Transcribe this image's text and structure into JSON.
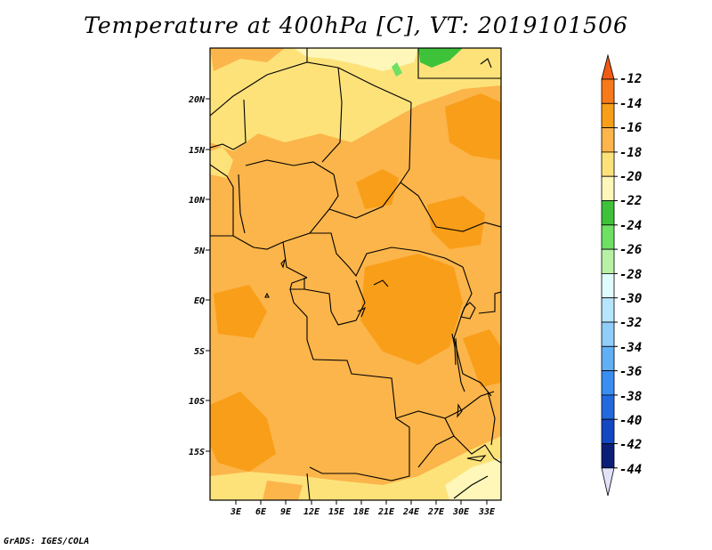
{
  "title": "Temperature at 400hPa [C], VT: 2019101506",
  "credit": "GrADS: IGES/COLA",
  "map": {
    "lat_labels": [
      "20N",
      "15N",
      "10N",
      "5N",
      "EQ",
      "5S",
      "10S",
      "15S"
    ],
    "lon_labels": [
      "3E",
      "6E",
      "9E",
      "12E",
      "15E",
      "18E",
      "21E",
      "24E",
      "27E",
      "30E",
      "33E"
    ]
  },
  "colorbar": {
    "labels": [
      "-12",
      "-14",
      "-16",
      "-18",
      "-20",
      "-22",
      "-24",
      "-26",
      "-28",
      "-30",
      "-32",
      "-34",
      "-36",
      "-38",
      "-40",
      "-42",
      "-44"
    ],
    "colors": [
      "#f05a14",
      "#f7791a",
      "#f99e19",
      "#fbb54a",
      "#fde27a",
      "#fef7b9",
      "#3ec23a",
      "#6ee063",
      "#b8f1a6",
      "#e0fcfe",
      "#b7e5fd",
      "#90cdf9",
      "#60b0f5",
      "#3a8ef1",
      "#2369de",
      "#1348c2",
      "#0b1f78",
      "#e2e2f9"
    ]
  }
}
